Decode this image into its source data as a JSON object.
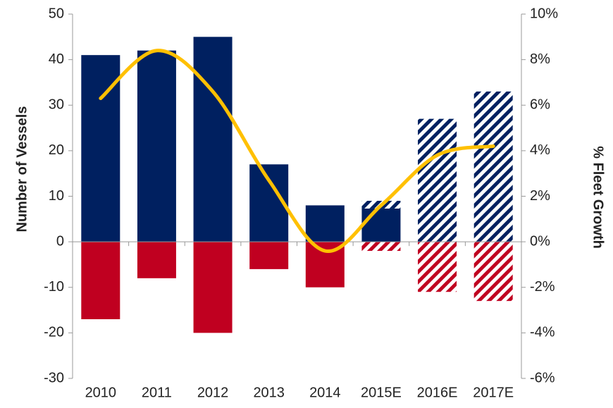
{
  "chart_data": {
    "type": "bar",
    "y_label": "Number of Vessels",
    "y2_label": "% Fleet Growth",
    "categories": [
      "2010",
      "2011",
      "2012",
      "2013",
      "2014",
      "2015E",
      "2016E",
      "2017E"
    ],
    "ylim": [
      -30,
      50
    ],
    "yticks": [
      -30,
      -20,
      -10,
      0,
      10,
      20,
      30,
      40,
      50
    ],
    "y2lim": [
      -6,
      10
    ],
    "y2ticks": [
      {
        "value": -6,
        "label": "-6%"
      },
      {
        "value": -4,
        "label": "-4%"
      },
      {
        "value": -2,
        "label": "-2%"
      },
      {
        "value": 0,
        "label": "0%"
      },
      {
        "value": 2,
        "label": "2%"
      },
      {
        "value": 4,
        "label": "4%"
      },
      {
        "value": 6,
        "label": "6%"
      },
      {
        "value": 8,
        "label": "8%"
      },
      {
        "value": 10,
        "label": "10%"
      }
    ],
    "series": [
      {
        "type": "bar",
        "color": "#002060",
        "pattern": "solid",
        "values": [
          41,
          42,
          45,
          17,
          8,
          7.3,
          null,
          null
        ]
      },
      {
        "type": "bar",
        "color": "#002060",
        "pattern": "hatched",
        "values": [
          null,
          null,
          null,
          null,
          null,
          1.7,
          27,
          33
        ]
      },
      {
        "type": "bar",
        "color": "#c00020",
        "pattern": "solid",
        "values": [
          -17,
          -8,
          -20,
          -6,
          -10,
          null,
          null,
          null
        ]
      },
      {
        "type": "bar",
        "color": "#c00020",
        "pattern": "hatched",
        "values": [
          null,
          null,
          null,
          null,
          null,
          -2,
          -11,
          -13
        ]
      },
      {
        "type": "line",
        "axis": "y2",
        "color": "#ffc000",
        "values": [
          6.3,
          8.4,
          6.6,
          2.7,
          -0.4,
          1.6,
          3.8,
          4.2
        ]
      }
    ]
  }
}
